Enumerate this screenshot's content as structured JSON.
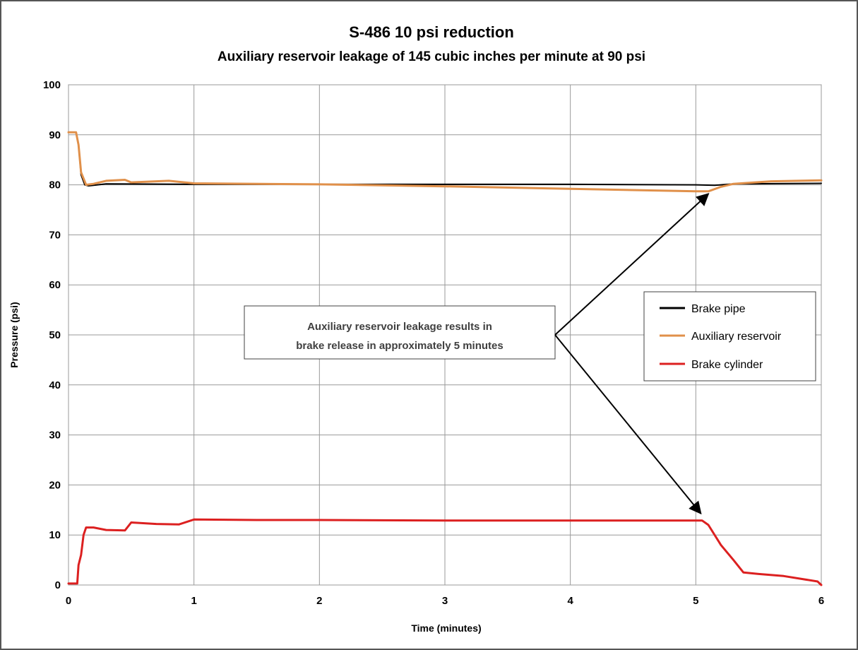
{
  "chart_data": {
    "type": "line",
    "title": "S-486 10 psi reduction",
    "subtitle": "Auxiliary reservoir leakage of 145 cubic inches per minute at 90 psi",
    "xlabel": "Time (minutes)",
    "ylabel": "Pressure (psi)",
    "xlim": [
      0,
      6
    ],
    "ylim": [
      0,
      100
    ],
    "xticks": [
      0,
      1,
      2,
      3,
      4,
      5,
      6
    ],
    "yticks": [
      0,
      10,
      20,
      30,
      40,
      50,
      60,
      70,
      80,
      90,
      100
    ],
    "grid": true,
    "legend_position": "right",
    "series": [
      {
        "name": "Brake pipe",
        "color": "#000000",
        "points": [
          [
            0,
            90.5
          ],
          [
            0.06,
            90.5
          ],
          [
            0.08,
            88
          ],
          [
            0.1,
            82
          ],
          [
            0.13,
            80
          ],
          [
            0.16,
            79.8
          ],
          [
            0.3,
            80.2
          ],
          [
            1,
            80.1
          ],
          [
            2,
            80.1
          ],
          [
            3,
            80.1
          ],
          [
            4,
            80.1
          ],
          [
            5,
            80
          ],
          [
            5.15,
            79.9
          ],
          [
            5.3,
            80.2
          ],
          [
            6,
            80.3
          ]
        ]
      },
      {
        "name": "Auxiliary reservoir",
        "color": "#E0904A",
        "points": [
          [
            0,
            90.5
          ],
          [
            0.06,
            90.5
          ],
          [
            0.08,
            88
          ],
          [
            0.1,
            82.5
          ],
          [
            0.14,
            80
          ],
          [
            0.2,
            80.2
          ],
          [
            0.3,
            80.8
          ],
          [
            0.45,
            81
          ],
          [
            0.5,
            80.5
          ],
          [
            0.8,
            80.8
          ],
          [
            1,
            80.3
          ],
          [
            2,
            80.1
          ],
          [
            3,
            79.7
          ],
          [
            4,
            79.2
          ],
          [
            5,
            78.7
          ],
          [
            5.1,
            78.7
          ],
          [
            5.2,
            79.6
          ],
          [
            5.3,
            80.2
          ],
          [
            5.6,
            80.7
          ],
          [
            6,
            80.9
          ]
        ]
      },
      {
        "name": "Brake cylinder",
        "color": "#DC2020",
        "points": [
          [
            0,
            0.3
          ],
          [
            0.07,
            0.3
          ],
          [
            0.08,
            4
          ],
          [
            0.1,
            6
          ],
          [
            0.12,
            10
          ],
          [
            0.14,
            11.5
          ],
          [
            0.2,
            11.5
          ],
          [
            0.3,
            11
          ],
          [
            0.45,
            10.9
          ],
          [
            0.5,
            12.5
          ],
          [
            0.7,
            12.2
          ],
          [
            0.88,
            12.1
          ],
          [
            1,
            13.1
          ],
          [
            1.5,
            13
          ],
          [
            2,
            13
          ],
          [
            3,
            12.9
          ],
          [
            4,
            12.9
          ],
          [
            5.05,
            12.9
          ],
          [
            5.1,
            12
          ],
          [
            5.2,
            8
          ],
          [
            5.3,
            5
          ],
          [
            5.38,
            2.5
          ],
          [
            5.5,
            2.2
          ],
          [
            5.7,
            1.8
          ],
          [
            5.97,
            0.7
          ],
          [
            6,
            0
          ]
        ]
      }
    ],
    "annotation": {
      "lines": [
        "Auxiliary reservoir leakage results in",
        "brake release in approximately 5 minutes"
      ],
      "arrow_targets": [
        [
          5.1,
          78.2
        ],
        [
          5.04,
          14.3
        ]
      ]
    }
  }
}
